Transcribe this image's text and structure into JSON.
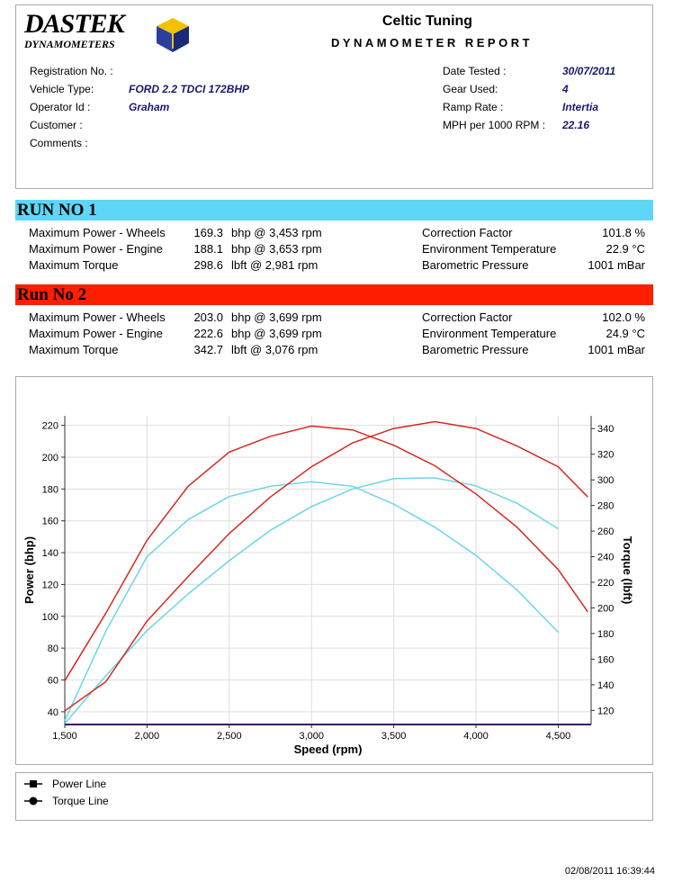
{
  "header": {
    "logo": "DASTEK",
    "logo_sub": "DYNAMOMETERS",
    "title": "Celtic Tuning",
    "subtitle": "DYNAMOMETER REPORT"
  },
  "info_left": [
    {
      "label": "Registration No. :"
    },
    {
      "label": "Vehicle Type:",
      "value": "FORD 2.2 TDCI 172BHP"
    },
    {
      "label": "Operator Id :",
      "value": "Graham"
    },
    {
      "label": "Customer :"
    },
    {
      "label": "Comments :"
    }
  ],
  "info_right": [
    {
      "label": "Date Tested :",
      "value": "30/07/2011"
    },
    {
      "label": "Gear Used:",
      "value": "4"
    },
    {
      "label": "Ramp Rate :",
      "value": "Intertia"
    },
    {
      "label": "MPH per 1000 RPM :",
      "value": "22.16"
    }
  ],
  "runs": [
    {
      "title": "RUN NO 1",
      "color": "#5fd6f6",
      "rows": [
        {
          "label": "Maximum Power - Wheels",
          "value": "169.3",
          "unit": "bhp @ 3,453 rpm"
        },
        {
          "label": "Maximum Power - Engine",
          "value": "188.1",
          "unit": "bhp @ 3,653 rpm"
        },
        {
          "label": "Maximum Torque",
          "value": "298.6",
          "unit": "lbft @ 2,981 rpm"
        }
      ],
      "env": [
        {
          "label": "Correction Factor",
          "value": "101.8 %"
        },
        {
          "label": "Environment Temperature",
          "value": "22.9 °C"
        },
        {
          "label": "Barometric Pressure",
          "value": "1001 mBar"
        }
      ]
    },
    {
      "title": "Run No 2",
      "color": "#ff1e00",
      "rows": [
        {
          "label": "Maximum Power - Wheels",
          "value": "203.0",
          "unit": "bhp @ 3,699 rpm"
        },
        {
          "label": "Maximum Power - Engine",
          "value": "222.6",
          "unit": "bhp @ 3,699 rpm"
        },
        {
          "label": "Maximum Torque",
          "value": "342.7",
          "unit": "lbft @ 3,076 rpm"
        }
      ],
      "env": [
        {
          "label": "Correction Factor",
          "value": "102.0 %"
        },
        {
          "label": "Environment Temperature",
          "value": "24.9 °C"
        },
        {
          "label": "Barometric Pressure",
          "value": "1001 mBar"
        }
      ]
    }
  ],
  "chart_data": {
    "type": "line",
    "x_label": "Speed (rpm)",
    "y_label": "Power (bhp)",
    "y2_label": "Torque (lbft)",
    "x": [
      1500,
      1750,
      2000,
      2250,
      2500,
      2750,
      3000,
      3250,
      3500,
      3750,
      4000,
      4250,
      4500,
      4680
    ],
    "xlim": [
      1500,
      4700
    ],
    "xticks": [
      {
        "value": 1500,
        "label": "1,500"
      },
      {
        "value": 2000,
        "label": "2,000"
      },
      {
        "value": 2500,
        "label": "2,500"
      },
      {
        "value": 3000,
        "label": "3,000"
      },
      {
        "value": 3500,
        "label": "3,500"
      },
      {
        "value": 4000,
        "label": "4,000"
      },
      {
        "value": 4500,
        "label": "4,500"
      }
    ],
    "ylim": [
      32,
      226
    ],
    "yticks": [
      40,
      60,
      80,
      100,
      120,
      140,
      160,
      180,
      200,
      220
    ],
    "y2lim": [
      109,
      350
    ],
    "y2ticks": [
      120,
      140,
      160,
      180,
      200,
      220,
      240,
      260,
      280,
      300,
      320,
      340
    ],
    "grid": true,
    "series": [
      {
        "color": "#6ed4ea",
        "values": [
          32.6,
          62.7,
          91,
          114,
          135,
          154,
          169,
          180,
          186.5,
          187,
          182,
          171,
          155,
          null
        ]
      },
      {
        "color": "#6ed4ea",
        "axis": "y2",
        "values": [
          112,
          182,
          240,
          269,
          287,
          295,
          298.5,
          295,
          281,
          263,
          241,
          214,
          181,
          null
        ]
      },
      {
        "color": "#d42a1e",
        "values": [
          40.6,
          59,
          97,
          125,
          152,
          175,
          194,
          209,
          218,
          222.3,
          218,
          207,
          194,
          175
        ]
      },
      {
        "color": "#d42a1e",
        "axis": "y2",
        "values": [
          143.2,
          196,
          252.8,
          295,
          321.7,
          334,
          342,
          339,
          327,
          311,
          289,
          263,
          230,
          197
        ]
      }
    ]
  },
  "legend": [
    "Power Line",
    "Torque Line"
  ],
  "footer": "02/08/2011 16:39:44"
}
